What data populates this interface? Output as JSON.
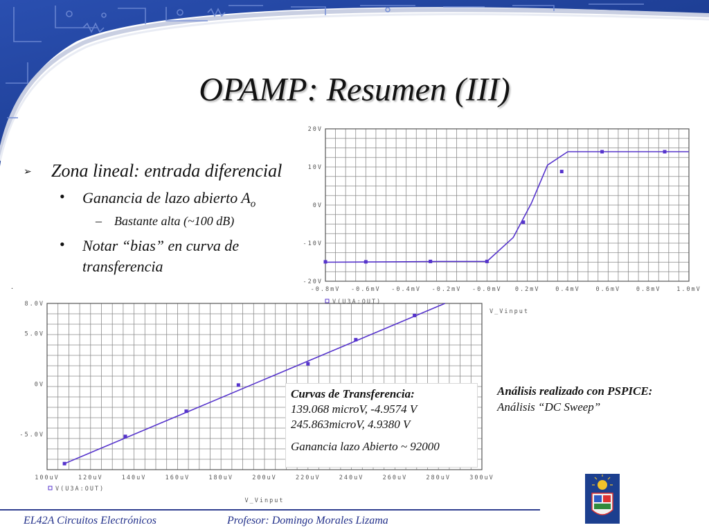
{
  "slide": {
    "title": "OPAMP: Resumen (III)",
    "bullets": {
      "level1_marker": "➢",
      "level1_text": "Zona lineal: entrada diferencial",
      "level2_marker": "•",
      "level2_a_text": "Ganancia de lazo abierto A",
      "level2_a_sub": "o",
      "level3_marker": "–",
      "level3_text": "Bastante alta (~100 dB)",
      "level2_b_line1": "Notar “bias” en curva de",
      "level2_b_line2": "transferencia"
    },
    "dot": "."
  },
  "infobox": {
    "heading": "Curvas de Transferencia:",
    "line1": "139.068 microV, -4.9574 V",
    "line2": "245.863microV, 4.9380 V",
    "gain": "Ganancia lazo Abierto ~ 92000"
  },
  "pspice_note": {
    "heading": "Análisis realizado con PSPICE:",
    "line": "Análisis “DC Sweep”"
  },
  "footer": {
    "course": "EL42A Circuitos Electrónicos",
    "professor": "Profesor: Domingo Morales Lizama"
  },
  "colors": {
    "banner": "#1b3a8a",
    "trace": "#5533cc",
    "grid": "#8a8a8a",
    "footer_text": "#22308a"
  },
  "chart_data": [
    {
      "type": "line",
      "xlim": [
        -0.8,
        1.0
      ],
      "ylim": [
        -20,
        20
      ],
      "x_ticks": [
        -0.8,
        -0.6,
        -0.4,
        -0.2,
        0.0,
        0.2,
        0.4,
        0.6,
        0.8,
        1.0
      ],
      "x_tick_labels": [
        "-0.8mV",
        "-0.6mV",
        "-0.4mV",
        "-0.2mV",
        "-0.0mV",
        "0.2mV",
        "0.4mV",
        "0.6mV",
        "0.8mV",
        "1.0mV"
      ],
      "y_ticks": [
        20,
        10,
        0,
        -10,
        -20
      ],
      "y_tick_labels": [
        "20V",
        "10V",
        "0V",
        "-10V",
        "-20V"
      ],
      "legend": "V(U3A:OUT)",
      "xlabel": "",
      "series": [
        {
          "x": [
            -0.8,
            -0.45,
            -0.2,
            0.0,
            0.13,
            0.22,
            0.3,
            0.4,
            0.5,
            0.65,
            0.8,
            1.0
          ],
          "y": [
            -15.0,
            -14.9,
            -14.8,
            -14.8,
            -8.5,
            0.5,
            10.5,
            14.0,
            14.0,
            14.0,
            14.0,
            14.0
          ],
          "markers_x": [
            -0.8,
            -0.6,
            -0.28,
            -0.0,
            0.18,
            0.37,
            0.57,
            0.88
          ],
          "markers_y": [
            -14.9,
            -14.9,
            -14.8,
            -14.8,
            -4.5,
            8.8,
            14.0,
            14.0
          ]
        }
      ],
      "grid": true
    },
    {
      "type": "line",
      "xlim": [
        100,
        300
      ],
      "ylim": [
        -8.5,
        8.0
      ],
      "x_ticks": [
        100,
        120,
        140,
        160,
        180,
        200,
        220,
        240,
        260,
        280,
        300
      ],
      "x_tick_labels": [
        "100uV",
        "120uV",
        "140uV",
        "160uV",
        "180uV",
        "200uV",
        "220uV",
        "240uV",
        "260uV",
        "280uV",
        "300uV"
      ],
      "y_ticks": [
        8.0,
        5.0,
        0,
        -5.0
      ],
      "y_tick_labels": [
        "8.0V",
        "5.0V",
        "0V",
        "-5.0V"
      ],
      "legend": "V(U3A:OUT)",
      "xlabel": "V_Vinput",
      "series": [
        {
          "x": [
            108,
            283
          ],
          "y": [
            -7.9,
            8.0
          ],
          "markers_x": [
            108,
            136,
            164,
            188,
            220,
            242,
            269
          ],
          "markers_y": [
            -7.9,
            -5.2,
            -2.7,
            -0.1,
            2.0,
            4.4,
            6.8
          ]
        }
      ],
      "grid": true
    }
  ],
  "chart_labels": {
    "top_xlabel": "V_Vinput"
  }
}
